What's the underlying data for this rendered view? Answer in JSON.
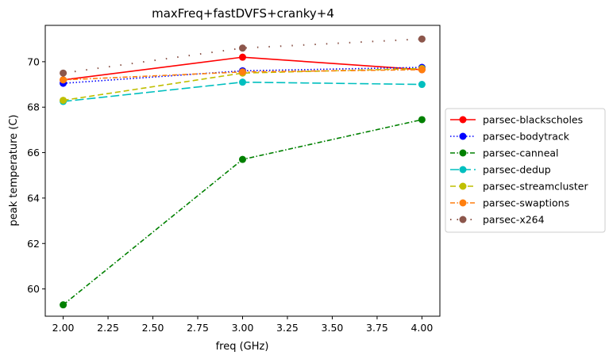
{
  "chart_data": {
    "type": "line",
    "title": "maxFreq+fastDVFS+cranky+4",
    "xlabel": "freq (GHz)",
    "ylabel": "peak temperature (C)",
    "xlim": [
      1.9,
      4.1
    ],
    "ylim": [
      58.8,
      71.6
    ],
    "x": [
      2.0,
      3.0,
      4.0
    ],
    "xticks": [
      "2.00",
      "2.25",
      "2.50",
      "2.75",
      "3.00",
      "3.25",
      "3.50",
      "3.75",
      "4.00"
    ],
    "xtick_values": [
      2.0,
      2.25,
      2.5,
      2.75,
      3.0,
      3.25,
      3.5,
      3.75,
      4.0
    ],
    "yticks": [
      "60",
      "62",
      "64",
      "66",
      "68",
      "70"
    ],
    "ytick_values": [
      60,
      62,
      64,
      66,
      68,
      70
    ],
    "grid": false,
    "legend_position": "right",
    "series": [
      {
        "name": "parsec-blackscholes",
        "values": [
          69.2,
          70.2,
          69.65
        ],
        "color": "#ff0000",
        "style": "solid"
      },
      {
        "name": "parsec-bodytrack",
        "values": [
          69.05,
          69.6,
          69.75
        ],
        "color": "#0000ff",
        "style": "dotted"
      },
      {
        "name": "parsec-canneal",
        "values": [
          59.3,
          65.7,
          67.45
        ],
        "color": "#008000",
        "style": "dashdot"
      },
      {
        "name": "parsec-dedup",
        "values": [
          68.25,
          69.1,
          69.0
        ],
        "color": "#00bfbf",
        "style": "longdash"
      },
      {
        "name": "parsec-streamcluster",
        "values": [
          68.3,
          69.5,
          69.7
        ],
        "color": "#bfbf00",
        "style": "dash"
      },
      {
        "name": "parsec-swaptions",
        "values": [
          69.2,
          69.55,
          69.65
        ],
        "color": "#ff7f0e",
        "style": "dashdot"
      },
      {
        "name": "parsec-x264",
        "values": [
          69.5,
          70.6,
          71.0
        ],
        "color": "#8c564b",
        "style": "sparse-dot"
      }
    ]
  }
}
